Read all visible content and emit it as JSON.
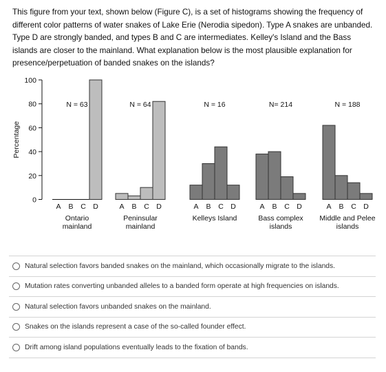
{
  "question": {
    "text": "This figure from your text, shown below (Figure C), is a set of histograms showing the frequency of different color patterns of water snakes of Lake Erie (Nerodia sipedon). Type A snakes are unbanded. Type D are strongly banded, and types B and C are intermediates. Kelley's Island and the Bass islands are closer to the mainland. What explanation below is the most plausible explanation for presence/perpetuation of banded snakes on the islands?"
  },
  "chart_data": {
    "type": "bar",
    "ylabel": "Percentage",
    "ylim": [
      0,
      100
    ],
    "yticks": [
      0,
      20,
      40,
      60,
      80,
      100
    ],
    "categories": [
      "A",
      "B",
      "C",
      "D"
    ],
    "groups": [
      {
        "label": [
          "Ontario",
          "mainland"
        ],
        "n": "N = 63",
        "values": [
          0,
          0,
          0,
          100
        ],
        "color": "#bdbdbd"
      },
      {
        "label": [
          "Peninsular",
          "mainland"
        ],
        "n": "N = 64",
        "values": [
          5,
          3,
          10,
          82
        ],
        "color": "#bdbdbd"
      },
      {
        "label": [
          "Kelleys Island"
        ],
        "n": "N = 16",
        "values": [
          12,
          30,
          44,
          12
        ],
        "color": "#7b7b7b"
      },
      {
        "label": [
          "Bass complex",
          "islands"
        ],
        "n": "N= 214",
        "values": [
          38,
          40,
          19,
          5
        ],
        "color": "#7b7b7b"
      },
      {
        "label": [
          "Middle and Pelee",
          "islands"
        ],
        "n": "N = 188",
        "values": [
          62,
          20,
          14,
          5
        ],
        "color": "#7b7b7b"
      }
    ]
  },
  "options": [
    "Natural selection favors banded snakes on the mainland, which occasionally migrate to the islands.",
    "Mutation rates converting unbanded alleles to a banded form operate at high frequencies on islands.",
    "Natural selection favors unbanded snakes on the mainland.",
    "Snakes on the islands represent a case of the so-called founder effect.",
    "Drift among island populations eventually leads to the fixation of bands."
  ]
}
